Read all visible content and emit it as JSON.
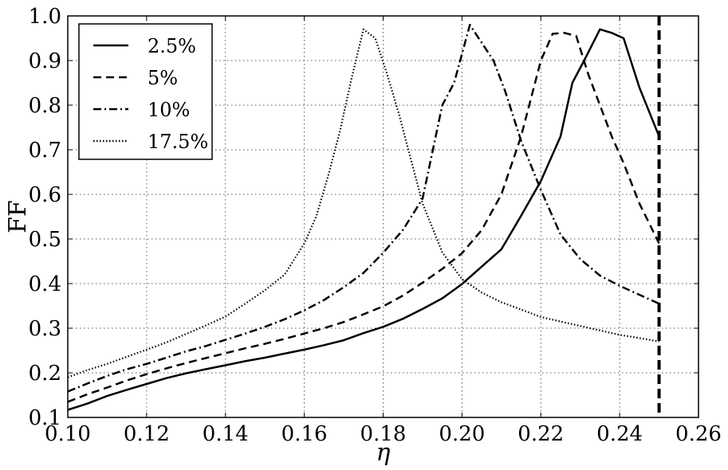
{
  "chart_data": {
    "type": "line",
    "title": "",
    "xlabel": "η",
    "ylabel": "FF",
    "xlim": [
      0.1,
      0.26
    ],
    "ylim": [
      0.1,
      1.0
    ],
    "grid": true,
    "legend_position": "top-left",
    "x_ticks": [
      "0.10",
      "0.12",
      "0.14",
      "0.16",
      "0.18",
      "0.20",
      "0.22",
      "0.24",
      "0.26"
    ],
    "y_ticks": [
      "0.1",
      "0.2",
      "0.3",
      "0.4",
      "0.5",
      "0.6",
      "0.7",
      "0.8",
      "0.9",
      "1.0"
    ],
    "vline": {
      "x": 0.25,
      "style": "dashed"
    },
    "series": [
      {
        "name": "2.5%",
        "style": "solid",
        "x": [
          0.1,
          0.105,
          0.11,
          0.115,
          0.12,
          0.125,
          0.13,
          0.135,
          0.14,
          0.145,
          0.15,
          0.155,
          0.16,
          0.165,
          0.17,
          0.175,
          0.18,
          0.185,
          0.19,
          0.195,
          0.2,
          0.205,
          0.21,
          0.215,
          0.22,
          0.225,
          0.228,
          0.231,
          0.235,
          0.238,
          0.241,
          0.245,
          0.25
        ],
        "y": [
          0.117,
          0.131,
          0.148,
          0.162,
          0.175,
          0.188,
          0.199,
          0.208,
          0.217,
          0.226,
          0.234,
          0.243,
          0.252,
          0.262,
          0.273,
          0.289,
          0.303,
          0.321,
          0.343,
          0.367,
          0.399,
          0.438,
          0.477,
          0.552,
          0.63,
          0.73,
          0.85,
          0.9,
          0.97,
          0.962,
          0.95,
          0.84,
          0.73
        ]
      },
      {
        "name": "5%",
        "style": "dashed",
        "x": [
          0.1,
          0.105,
          0.11,
          0.115,
          0.12,
          0.125,
          0.13,
          0.135,
          0.14,
          0.145,
          0.15,
          0.155,
          0.16,
          0.165,
          0.17,
          0.175,
          0.18,
          0.185,
          0.19,
          0.195,
          0.2,
          0.205,
          0.21,
          0.215,
          0.22,
          0.223,
          0.226,
          0.229,
          0.232,
          0.235,
          0.238,
          0.241,
          0.245,
          0.25
        ],
        "y": [
          0.135,
          0.152,
          0.167,
          0.183,
          0.197,
          0.21,
          0.222,
          0.233,
          0.244,
          0.255,
          0.265,
          0.276,
          0.288,
          0.3,
          0.314,
          0.331,
          0.349,
          0.373,
          0.402,
          0.433,
          0.468,
          0.52,
          0.6,
          0.73,
          0.9,
          0.96,
          0.962,
          0.955,
          0.87,
          0.8,
          0.73,
          0.67,
          0.58,
          0.49
        ]
      },
      {
        "name": "10%",
        "style": "dashdot",
        "x": [
          0.1,
          0.105,
          0.11,
          0.115,
          0.12,
          0.125,
          0.13,
          0.135,
          0.14,
          0.145,
          0.15,
          0.155,
          0.16,
          0.165,
          0.17,
          0.175,
          0.18,
          0.185,
          0.19,
          0.195,
          0.198,
          0.202,
          0.205,
          0.208,
          0.211,
          0.215,
          0.22,
          0.225,
          0.23,
          0.235,
          0.24,
          0.245,
          0.25
        ],
        "y": [
          0.158,
          0.176,
          0.193,
          0.208,
          0.22,
          0.234,
          0.248,
          0.26,
          0.274,
          0.288,
          0.303,
          0.32,
          0.34,
          0.363,
          0.392,
          0.424,
          0.469,
          0.52,
          0.59,
          0.8,
          0.85,
          0.98,
          0.94,
          0.9,
          0.83,
          0.72,
          0.61,
          0.51,
          0.455,
          0.418,
          0.395,
          0.375,
          0.355
        ]
      },
      {
        "name": "17.5%",
        "style": "dotted",
        "x": [
          0.1,
          0.105,
          0.11,
          0.115,
          0.12,
          0.125,
          0.13,
          0.135,
          0.14,
          0.145,
          0.15,
          0.155,
          0.16,
          0.163,
          0.166,
          0.169,
          0.172,
          0.175,
          0.178,
          0.181,
          0.184,
          0.187,
          0.19,
          0.195,
          0.2,
          0.205,
          0.21,
          0.215,
          0.22,
          0.225,
          0.23,
          0.235,
          0.24,
          0.245,
          0.25
        ],
        "y": [
          0.19,
          0.206,
          0.22,
          0.236,
          0.252,
          0.268,
          0.287,
          0.306,
          0.326,
          0.355,
          0.385,
          0.42,
          0.49,
          0.55,
          0.64,
          0.74,
          0.86,
          0.97,
          0.95,
          0.87,
          0.78,
          0.68,
          0.58,
          0.47,
          0.41,
          0.38,
          0.358,
          0.342,
          0.325,
          0.315,
          0.305,
          0.295,
          0.285,
          0.278,
          0.27
        ]
      }
    ]
  }
}
